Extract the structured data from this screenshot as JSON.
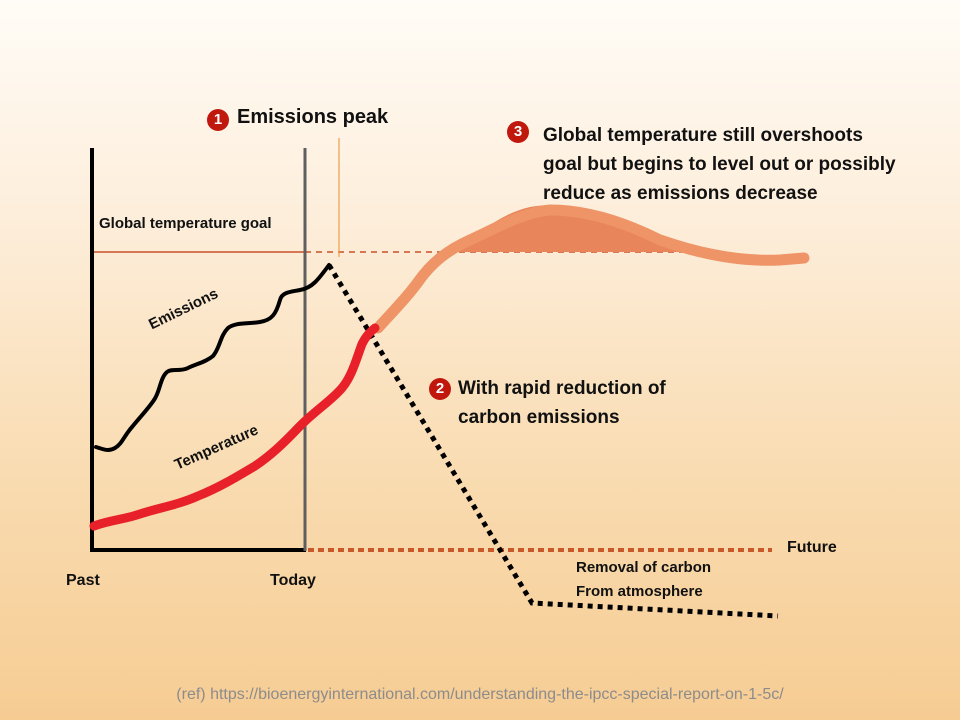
{
  "steps": {
    "one": {
      "num": "1",
      "text": "Emissions peak"
    },
    "two": {
      "num": "2",
      "line1": "With rapid reduction of",
      "line2": "carbon emissions"
    },
    "three": {
      "num": "3",
      "line1": "Global temperature still overshoots",
      "line2": "goal but begins to level out or possibly",
      "line3": "reduce as emissions decrease"
    }
  },
  "labels": {
    "goal": "Global temperature goal",
    "emissions": "Emissions",
    "temperature": "Temperature",
    "past": "Past",
    "today": "Today",
    "future": "Future",
    "removal_line1": "Removal of carbon",
    "removal_line2": "From atmosphere"
  },
  "reference": "(ref) https://bioenergyinternational.com/understanding-the-ipcc-special-report-on-1-5c/",
  "colors": {
    "emissions": "#000000",
    "temperature": "#e8202a",
    "projected_temperature": "#ee9466",
    "overshoot_fill": "#e8855a",
    "goal_line": "#c9502a",
    "future_line": "#c9582a",
    "today_line": "#5f5f5f",
    "badge": "#c0180c"
  }
}
